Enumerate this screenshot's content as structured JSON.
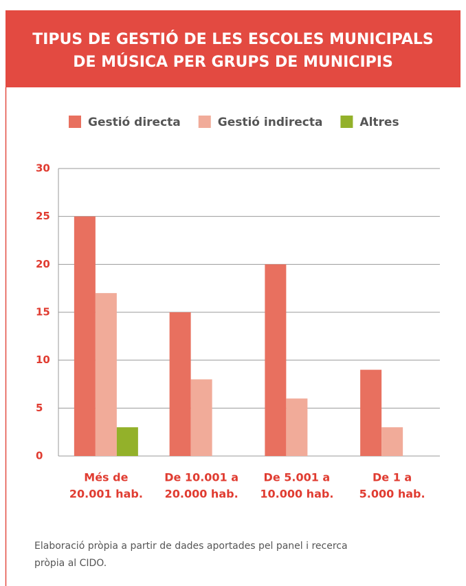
{
  "chart_data": {
    "type": "bar",
    "title": [
      "TIPUS DE GESTIÓ DE LES ESCOLES MUNICIPALS",
      "DE MÚSICA PER GRUPS DE MUNICIPIS"
    ],
    "categories": [
      [
        "Més de",
        "20.001 hab."
      ],
      [
        "De 10.001 a",
        "20.000 hab."
      ],
      [
        "De 5.001 a",
        "10.000 hab."
      ],
      [
        "De 1 a",
        "5.000 hab."
      ]
    ],
    "series": [
      {
        "name": "Gestió directa",
        "color": "#e8705f",
        "values": [
          25,
          15,
          20,
          9
        ]
      },
      {
        "name": "Gestió indirecta",
        "color": "#f1ab99",
        "values": [
          17,
          8,
          6,
          3
        ]
      },
      {
        "name": "Altres",
        "color": "#93b12a",
        "values": [
          3,
          0,
          0,
          0
        ]
      }
    ],
    "ylim": [
      0,
      30
    ],
    "yticks": [
      0,
      5,
      10,
      15,
      20,
      25,
      30
    ],
    "grid": true,
    "legend": "top",
    "note": [
      "Elaboració pròpia a partir de dades aportades pel panel i recerca",
      "pròpia al CIDO."
    ]
  }
}
